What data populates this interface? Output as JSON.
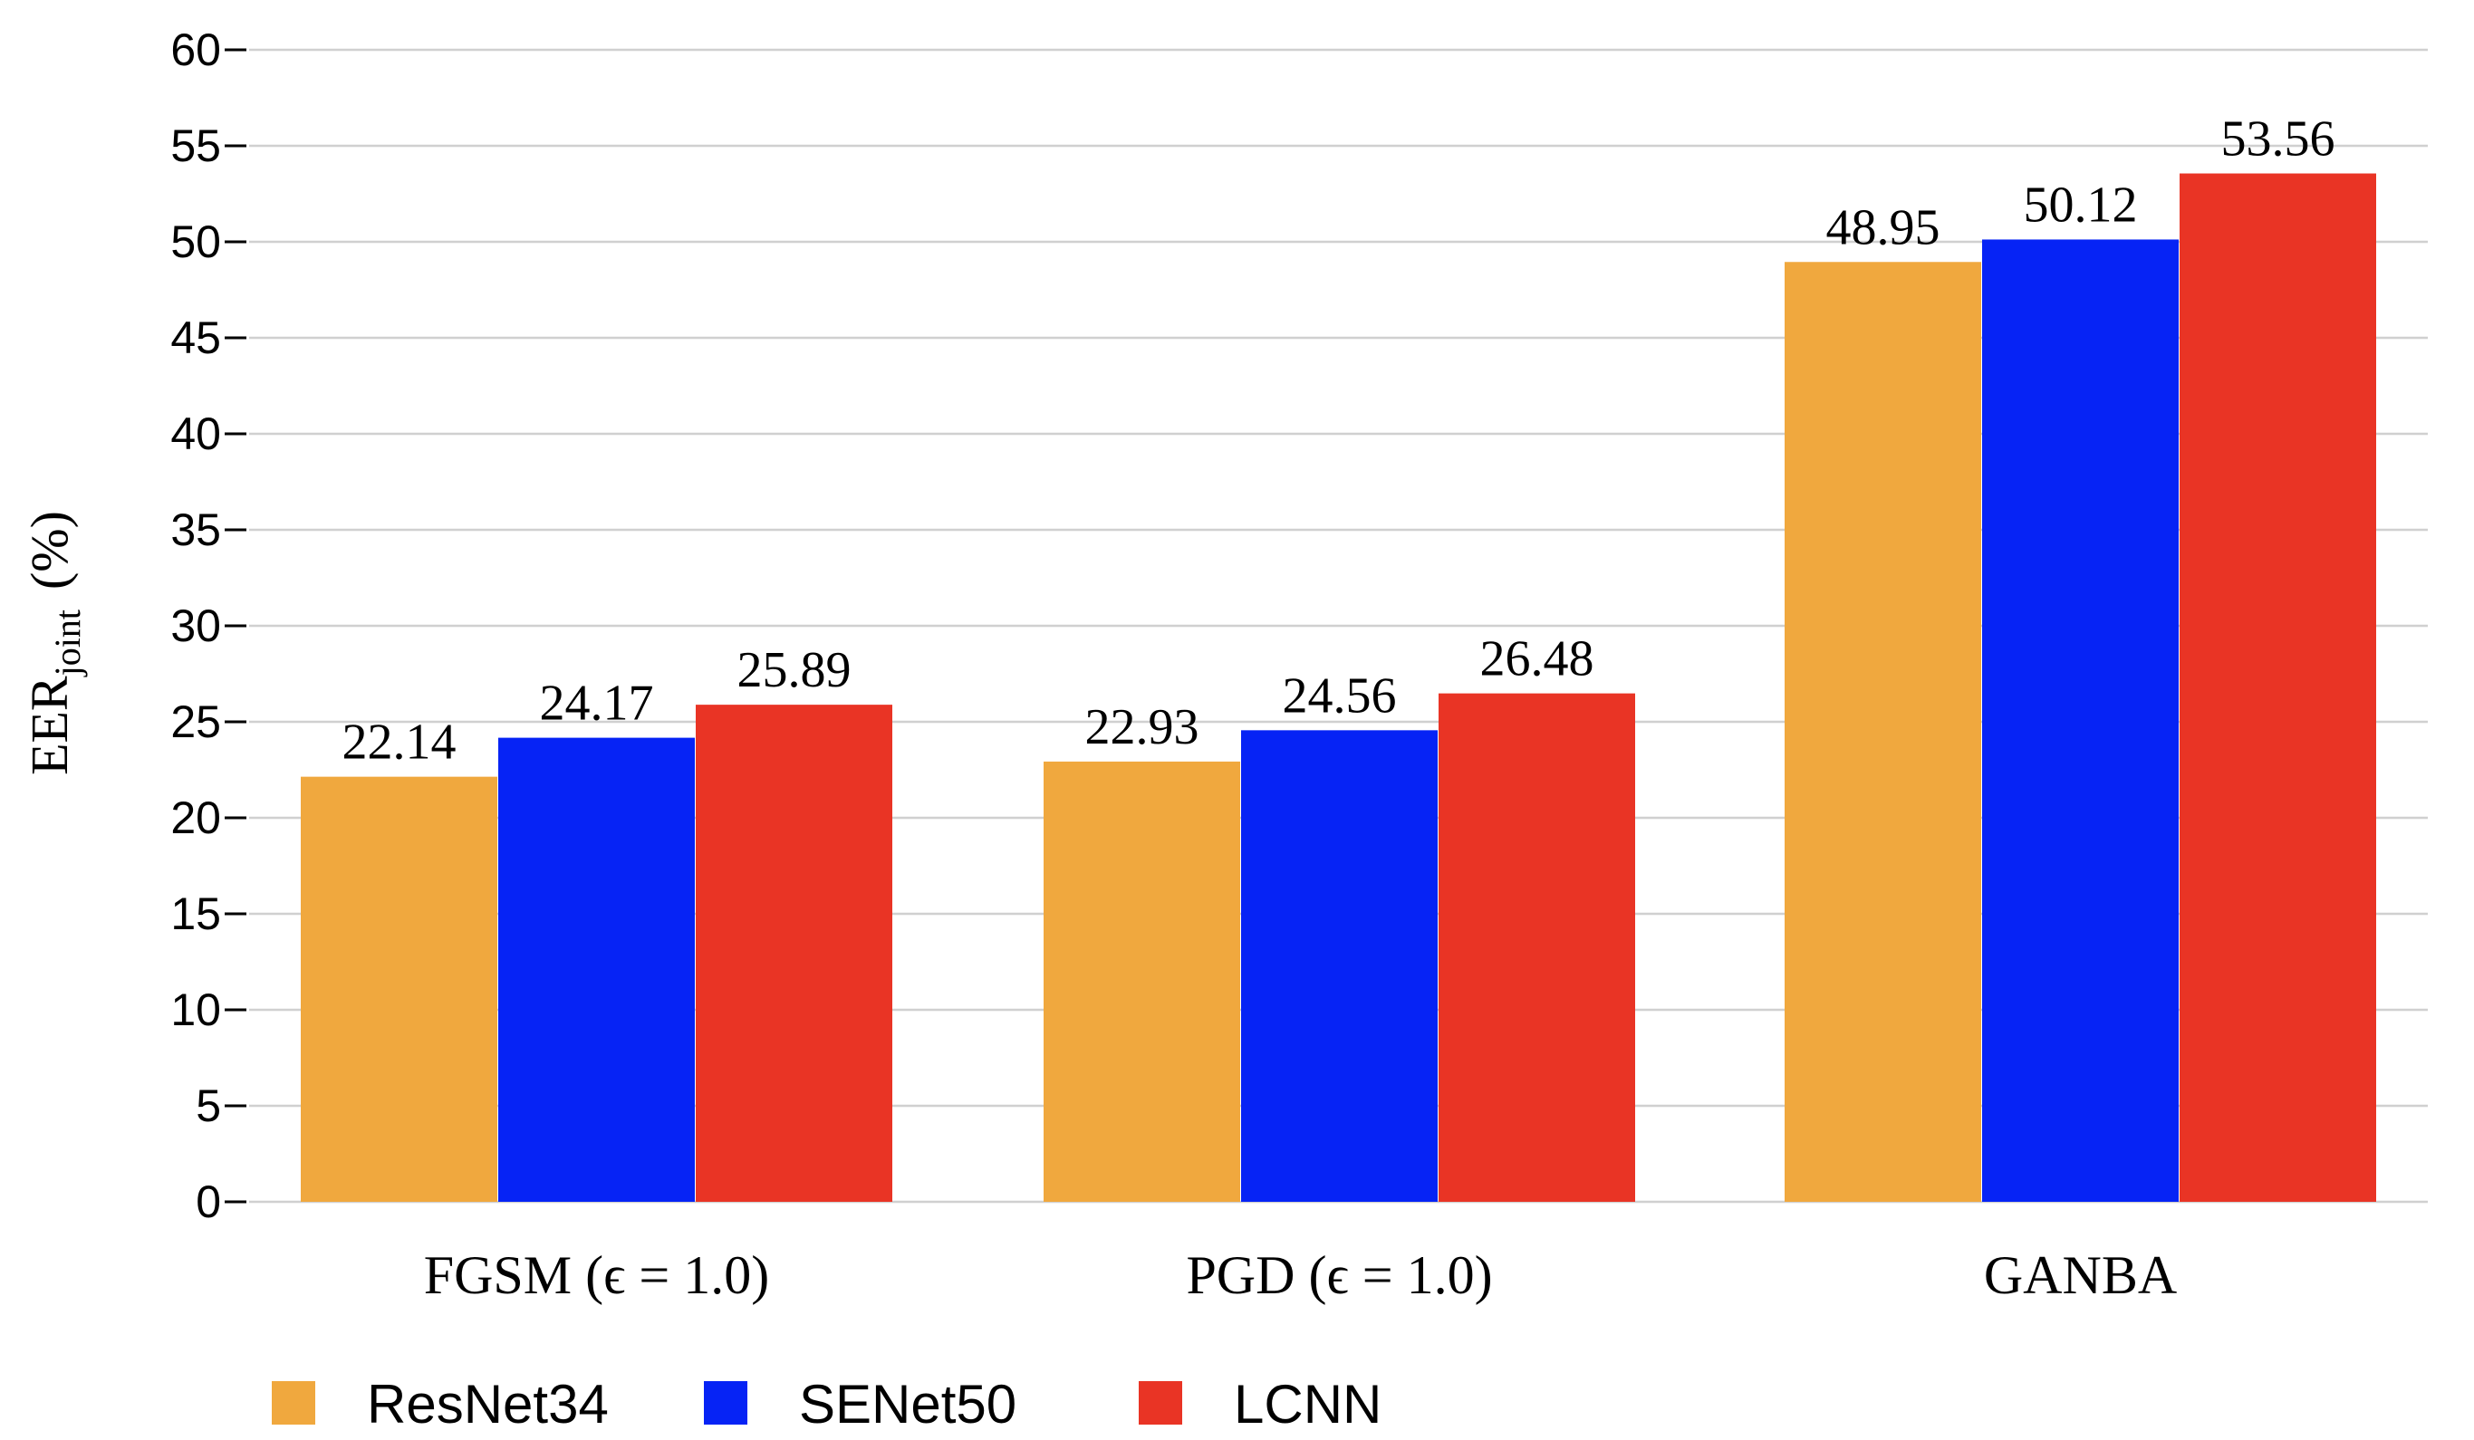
{
  "chart_data": {
    "type": "bar",
    "categories": [
      "FGSM (ϵ = 1.0)",
      "PGD (ϵ = 1.0)",
      "GANBA"
    ],
    "series": [
      {
        "name": "ResNet34",
        "color": "#F0A83E",
        "values": [
          22.14,
          22.93,
          48.95
        ]
      },
      {
        "name": "SENet50",
        "color": "#0623F5",
        "values": [
          24.17,
          24.56,
          50.12
        ]
      },
      {
        "name": "LCNN",
        "color": "#E93425",
        "values": [
          25.89,
          26.48,
          53.56
        ]
      }
    ],
    "value_labels": [
      [
        "22.14",
        "22.93",
        "48.95"
      ],
      [
        "24.17",
        "24.56",
        "50.12"
      ],
      [
        "25.89",
        "26.48",
        "53.56"
      ]
    ],
    "ylabel": {
      "main": "EER",
      "subscript": "joint",
      "suffix": "(%)"
    },
    "ylim": [
      0,
      60
    ],
    "yticks": [
      "0",
      "5",
      "10",
      "15",
      "20",
      "25",
      "30",
      "35",
      "40",
      "45",
      "50",
      "55",
      "60"
    ],
    "grid": true,
    "gridline_color": "#D0D0D0",
    "legend_position": "bottom-left"
  }
}
